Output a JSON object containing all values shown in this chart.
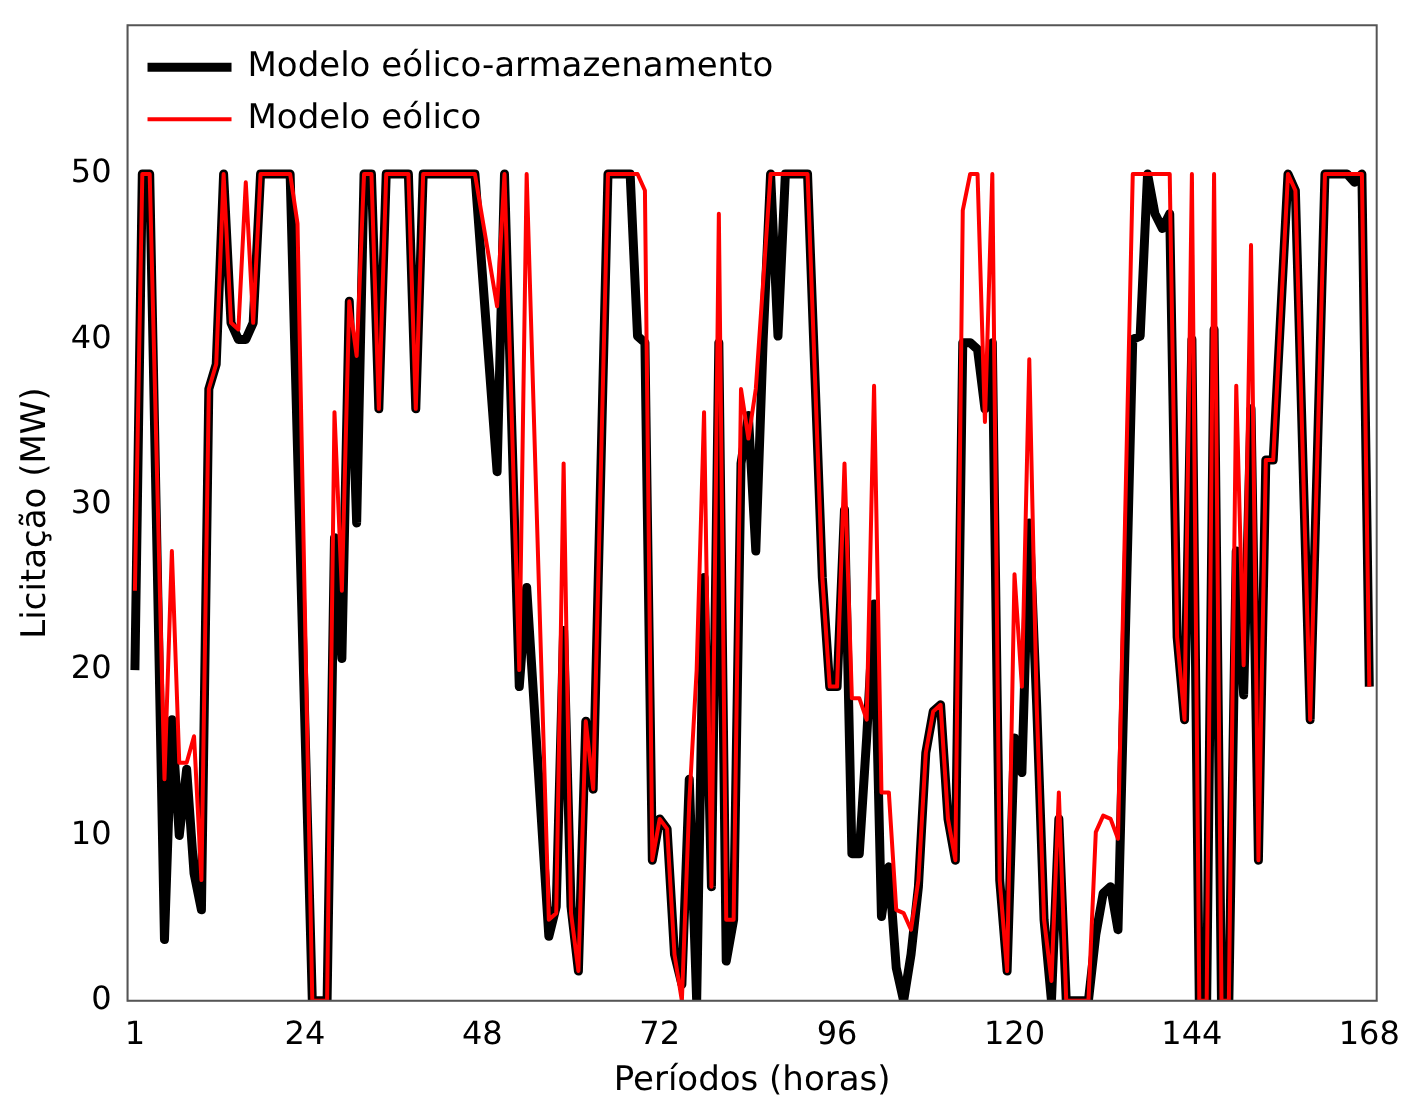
{
  "chart_data": {
    "type": "line",
    "xlabel": "Períodos (horas)",
    "ylabel": "Licitação (MW)",
    "xlim": [
      0,
      169
    ],
    "xticks": [
      1,
      24,
      48,
      72,
      96,
      120,
      144,
      168
    ],
    "ylim": [
      0,
      59
    ],
    "yticks": [
      0,
      10,
      20,
      30,
      40,
      50
    ],
    "grid": false,
    "legend": "top left",
    "marker": "none",
    "line_style": "solid",
    "series": [
      {
        "name": "Modelo eólico-armazenamento",
        "color": "#000000",
        "x": [
          1,
          2,
          3,
          5,
          6,
          7,
          8,
          9,
          10,
          11,
          12,
          13,
          14,
          15,
          16,
          17,
          18,
          22,
          25,
          27,
          28,
          29,
          30,
          31,
          32,
          33,
          34,
          35,
          38,
          39,
          40,
          47,
          50,
          51,
          53,
          54,
          57,
          58,
          59,
          60,
          61,
          62,
          63,
          65,
          68,
          69,
          70,
          71,
          72,
          73,
          74,
          75,
          76,
          77,
          78,
          79,
          80,
          81,
          82,
          83,
          84,
          85,
          86,
          87,
          88,
          89,
          92,
          94,
          95,
          96,
          97,
          98,
          99,
          100,
          101,
          102,
          103,
          104,
          105,
          106,
          107,
          108,
          109,
          110,
          111,
          112,
          113,
          114,
          115,
          116,
          117,
          118,
          119,
          120,
          121,
          122,
          123,
          124,
          125,
          126,
          127,
          130,
          131,
          132,
          133,
          134,
          136,
          137,
          138,
          139,
          140,
          141,
          142,
          143,
          144,
          145,
          146,
          147,
          148,
          149,
          150,
          151,
          152,
          153,
          154,
          155,
          157,
          158,
          160,
          162,
          165,
          166,
          167,
          168
        ],
        "values": [
          20,
          50,
          50,
          3.7,
          17,
          10,
          14,
          7.7,
          5.5,
          37,
          38.5,
          50,
          41,
          40,
          40,
          41,
          50,
          50,
          0,
          0,
          28,
          20.7,
          42.3,
          28.9,
          50,
          50,
          35.8,
          50,
          50,
          35.8,
          50,
          50,
          32,
          50,
          19,
          25,
          3.9,
          5.7,
          22.4,
          5.7,
          1.8,
          16.9,
          12.8,
          50,
          50,
          40.2,
          39.8,
          8.5,
          11,
          10.4,
          2.8,
          1,
          13.4,
          0,
          25.6,
          6.9,
          39.8,
          2.4,
          4.9,
          32.5,
          35.4,
          27.2,
          40,
          50,
          40.2,
          50,
          50,
          25.6,
          19,
          19,
          29.7,
          8.9,
          8.9,
          15.9,
          24,
          5.1,
          8.1,
          2,
          0,
          2.8,
          6.9,
          15,
          17.5,
          17.9,
          11,
          8.5,
          39.8,
          39.8,
          39.4,
          35.8,
          39.8,
          7.3,
          1.8,
          15.9,
          13.8,
          28.9,
          17.9,
          4.9,
          0,
          11,
          0,
          0,
          4,
          6.5,
          6.9,
          4.3,
          40,
          40.2,
          50,
          47.6,
          46.7,
          47.6,
          22,
          17,
          40,
          0,
          0,
          40.6,
          0,
          0,
          27.2,
          18.5,
          35.8,
          8.5,
          32.7,
          32.7,
          50,
          49,
          17,
          50,
          50,
          49.5,
          50,
          19
        ]
      },
      {
        "name": "Modelo eólico",
        "color": "#ff0000",
        "x": [
          1,
          2,
          3,
          5,
          6,
          7,
          8,
          9,
          10,
          11,
          12,
          13,
          14,
          15,
          16,
          17,
          18,
          22,
          23,
          25,
          27,
          28,
          29,
          30,
          31,
          32,
          33,
          34,
          35,
          38,
          39,
          40,
          47,
          50,
          51,
          53,
          54,
          57,
          58,
          59,
          60,
          61,
          62,
          63,
          65,
          69,
          70,
          71,
          72,
          73,
          74,
          75,
          76,
          77,
          78,
          79,
          80,
          81,
          82,
          83,
          84,
          85,
          86,
          87,
          92,
          94,
          95,
          96,
          97,
          98,
          99,
          100,
          101,
          102,
          103,
          104,
          105,
          106,
          107,
          108,
          109,
          110,
          111,
          112,
          113,
          114,
          115,
          116,
          117,
          118,
          119,
          120,
          121,
          122,
          123,
          124,
          125,
          126,
          127,
          130,
          131,
          132,
          133,
          134,
          136,
          141,
          142,
          143,
          144,
          145,
          146,
          147,
          148,
          149,
          150,
          151,
          152,
          153,
          154,
          155,
          157,
          158,
          160,
          162,
          167,
          168
        ],
        "values": [
          24.8,
          50,
          50,
          13.4,
          27.2,
          14.4,
          14.4,
          16,
          7.3,
          37,
          38.5,
          50,
          41,
          40.6,
          49.5,
          41,
          50,
          50,
          47,
          0,
          0,
          35.6,
          24.8,
          42.3,
          39,
          50,
          50,
          35.8,
          50,
          50,
          35.8,
          50,
          50,
          42,
          50,
          20,
          50,
          4.9,
          5.3,
          32.5,
          5.3,
          1.8,
          16.9,
          12.8,
          50,
          50,
          49,
          8.5,
          11,
          10.4,
          2.8,
          0,
          12,
          20,
          35.6,
          6.9,
          47.6,
          4.9,
          4.9,
          37,
          34,
          37,
          43.5,
          50,
          50,
          25.6,
          19,
          19,
          32.5,
          18.3,
          18.3,
          17,
          37.2,
          12.6,
          12.6,
          5.5,
          5.3,
          4.3,
          7.3,
          15,
          17.5,
          17.9,
          11,
          8.5,
          47.8,
          50,
          50,
          35,
          50,
          7.3,
          1.8,
          25.8,
          19,
          38.8,
          17.9,
          4.9,
          1.2,
          12.6,
          0,
          0,
          10.2,
          11.2,
          11,
          9.8,
          50,
          50,
          22,
          17,
          50,
          0,
          0,
          50,
          0,
          0,
          37.2,
          20.3,
          45.7,
          8.5,
          32.7,
          32.7,
          50,
          49,
          17,
          50,
          50,
          19
        ]
      }
    ]
  }
}
